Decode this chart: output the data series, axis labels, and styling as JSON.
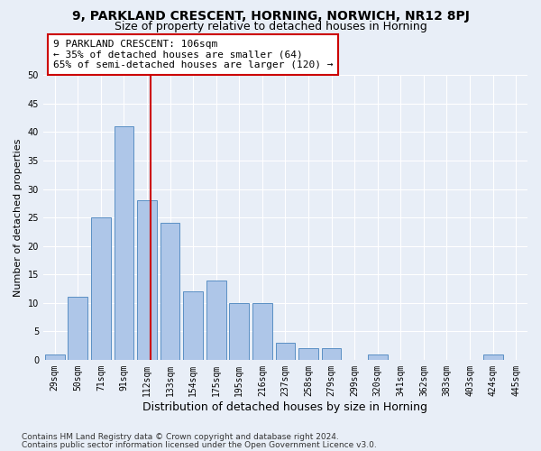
{
  "title1": "9, PARKLAND CRESCENT, HORNING, NORWICH, NR12 8PJ",
  "title2": "Size of property relative to detached houses in Horning",
  "xlabel": "Distribution of detached houses by size in Horning",
  "ylabel": "Number of detached properties",
  "categories": [
    "29sqm",
    "50sqm",
    "71sqm",
    "91sqm",
    "112sqm",
    "133sqm",
    "154sqm",
    "175sqm",
    "195sqm",
    "216sqm",
    "237sqm",
    "258sqm",
    "279sqm",
    "299sqm",
    "320sqm",
    "341sqm",
    "362sqm",
    "383sqm",
    "403sqm",
    "424sqm",
    "445sqm"
  ],
  "values": [
    1,
    11,
    25,
    41,
    28,
    24,
    12,
    14,
    10,
    10,
    3,
    2,
    2,
    0,
    1,
    0,
    0,
    0,
    0,
    1,
    0
  ],
  "bar_color": "#aec6e8",
  "bar_edge_color": "#5a8fc4",
  "vline_color": "#cc0000",
  "annotation_text": "9 PARKLAND CRESCENT: 106sqm\n← 35% of detached houses are smaller (64)\n65% of semi-detached houses are larger (120) →",
  "annotation_box_color": "#ffffff",
  "annotation_box_edge_color": "#cc0000",
  "ylim": [
    0,
    50
  ],
  "yticks": [
    0,
    5,
    10,
    15,
    20,
    25,
    30,
    35,
    40,
    45,
    50
  ],
  "footer1": "Contains HM Land Registry data © Crown copyright and database right 2024.",
  "footer2": "Contains public sector information licensed under the Open Government Licence v3.0.",
  "background_color": "#e8eef7",
  "plot_background_color": "#e8eef7",
  "grid_color": "#ffffff",
  "title1_fontsize": 10,
  "title2_fontsize": 9,
  "xlabel_fontsize": 9,
  "ylabel_fontsize": 8,
  "tick_fontsize": 7,
  "annotation_fontsize": 8,
  "footer_fontsize": 6.5
}
